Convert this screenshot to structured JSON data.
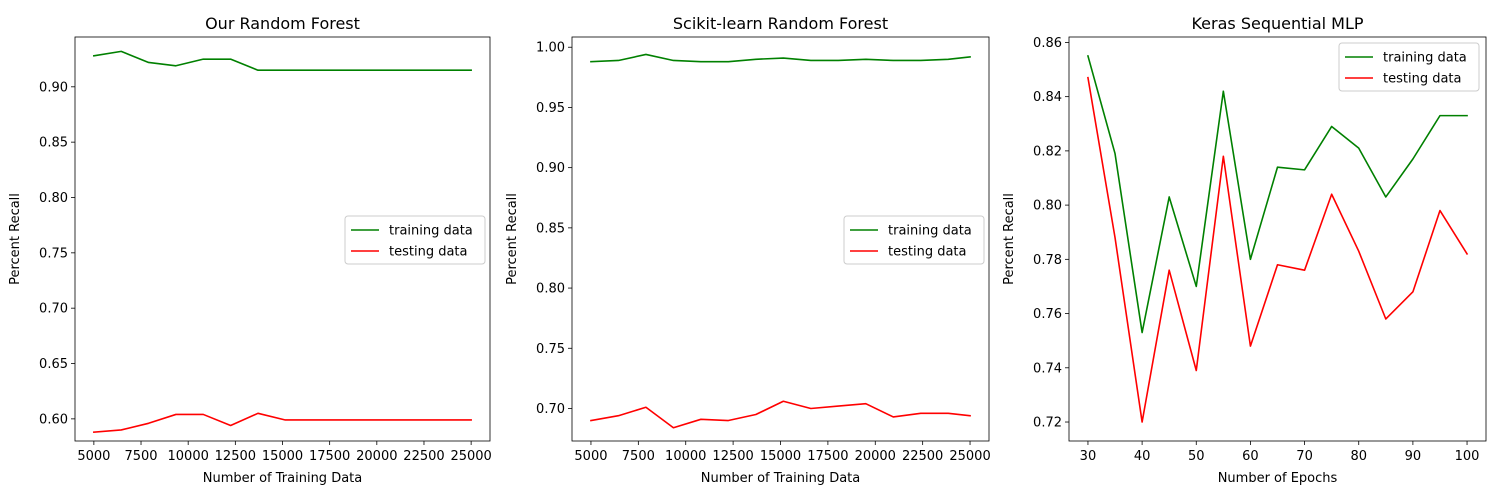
{
  "chart_data": [
    {
      "type": "line",
      "title": "Our Random Forest",
      "xlabel": "Number of Training Data",
      "ylabel": "Percent Recall",
      "xlim": [
        4000,
        26000
      ],
      "ylim": [
        0.58,
        0.945
      ],
      "xticks": [
        5000,
        7500,
        10000,
        12500,
        15000,
        17500,
        20000,
        22500,
        25000
      ],
      "yticks": [
        0.6,
        0.65,
        0.7,
        0.75,
        0.8,
        0.85,
        0.9
      ],
      "ytick_decimals": 2,
      "legend_position": "center-right",
      "x": [
        5000,
        6450,
        7900,
        9350,
        10800,
        12250,
        13700,
        15150,
        16600,
        18050,
        19500,
        20950,
        22400,
        23850,
        25000
      ],
      "series": [
        {
          "name": "training data",
          "color": "#008000",
          "values": [
            0.928,
            0.932,
            0.922,
            0.919,
            0.925,
            0.925,
            0.915,
            0.915,
            0.915,
            0.915,
            0.915,
            0.915,
            0.915,
            0.915,
            0.915
          ]
        },
        {
          "name": "testing data",
          "color": "#ff0000",
          "values": [
            0.588,
            0.59,
            0.596,
            0.604,
            0.604,
            0.594,
            0.605,
            0.599,
            0.599,
            0.599,
            0.599,
            0.599,
            0.599,
            0.599,
            0.599
          ]
        }
      ]
    },
    {
      "type": "line",
      "title": "Scikit-learn Random Forest",
      "xlabel": "Number of Training Data",
      "ylabel": "Percent Recall",
      "xlim": [
        4000,
        26000
      ],
      "ylim": [
        0.673,
        1.0085
      ],
      "xticks": [
        5000,
        7500,
        10000,
        12500,
        15000,
        17500,
        20000,
        22500,
        25000
      ],
      "yticks": [
        0.7,
        0.75,
        0.8,
        0.85,
        0.9,
        0.95,
        1.0
      ],
      "ytick_decimals": 2,
      "legend_position": "center-right",
      "x": [
        5000,
        6450,
        7900,
        9350,
        10800,
        12250,
        13700,
        15150,
        16600,
        18050,
        19500,
        20950,
        22400,
        23850,
        25000
      ],
      "series": [
        {
          "name": "training data",
          "color": "#008000",
          "values": [
            0.988,
            0.989,
            0.994,
            0.989,
            0.988,
            0.988,
            0.99,
            0.991,
            0.989,
            0.989,
            0.99,
            0.989,
            0.989,
            0.99,
            0.992
          ]
        },
        {
          "name": "testing data",
          "color": "#ff0000",
          "values": [
            0.69,
            0.694,
            0.701,
            0.684,
            0.691,
            0.69,
            0.695,
            0.706,
            0.7,
            0.702,
            0.704,
            0.693,
            0.696,
            0.696,
            0.694
          ]
        }
      ]
    },
    {
      "type": "line",
      "title": "Keras Sequential MLP",
      "xlabel": "Number of Epochs",
      "ylabel": "Percent Recall",
      "xlim": [
        26.5,
        103.5
      ],
      "ylim": [
        0.713,
        0.862
      ],
      "xticks": [
        30,
        40,
        50,
        60,
        70,
        80,
        90,
        100
      ],
      "yticks": [
        0.72,
        0.74,
        0.76,
        0.78,
        0.8,
        0.82,
        0.84,
        0.86
      ],
      "ytick_decimals": 2,
      "legend_position": "upper-right",
      "x": [
        30,
        35,
        40,
        45,
        50,
        55,
        60,
        65,
        70,
        75,
        80,
        85,
        90,
        95,
        100
      ],
      "series": [
        {
          "name": "training data",
          "color": "#008000",
          "values": [
            0.855,
            0.819,
            0.753,
            0.803,
            0.77,
            0.842,
            0.78,
            0.814,
            0.813,
            0.829,
            0.821,
            0.803,
            0.817,
            0.833,
            0.833
          ]
        },
        {
          "name": "testing data",
          "color": "#ff0000",
          "values": [
            0.847,
            0.788,
            0.72,
            0.776,
            0.739,
            0.818,
            0.748,
            0.778,
            0.776,
            0.804,
            0.783,
            0.758,
            0.768,
            0.798,
            0.782
          ]
        }
      ]
    }
  ]
}
